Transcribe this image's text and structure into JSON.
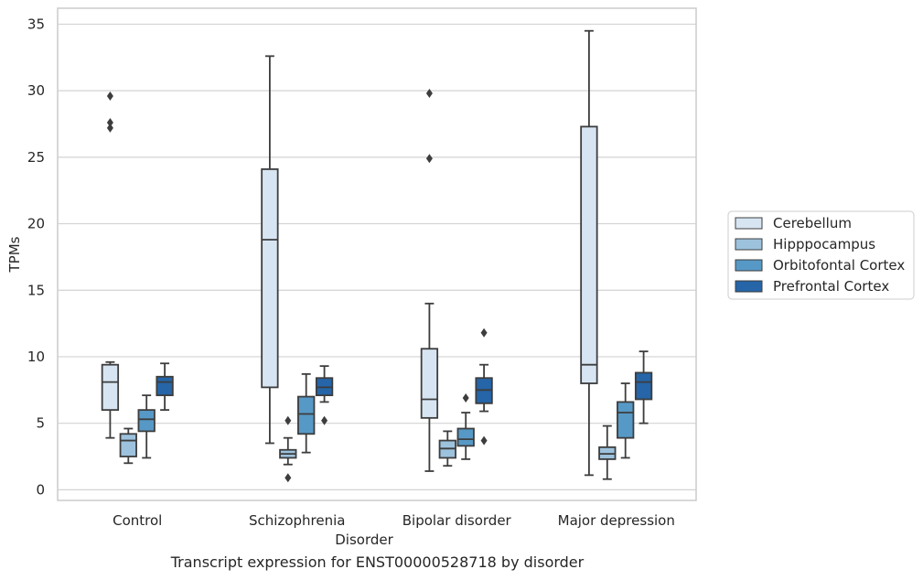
{
  "caption": "Transcript expression for ENST00000528718 by disorder",
  "chart_data": {
    "type": "boxplot",
    "xlabel": "Disorder",
    "ylabel": "TPMs",
    "ylim": [
      -0.8,
      36.2
    ],
    "yticks": [
      0,
      5,
      10,
      15,
      20,
      25,
      30,
      35
    ],
    "grid": true,
    "legend_position": "right",
    "categories": [
      "Control",
      "Schizophrenia",
      "Bipolar disorder",
      "Major depression"
    ],
    "series": [
      {
        "name": "Cerebellum",
        "color": "#d7e5f3",
        "boxes": [
          {
            "whisker_low": 3.9,
            "q1": 6.0,
            "median": 8.1,
            "q3": 9.4,
            "whisker_high": 9.6,
            "outliers": [
              27.2,
              27.6,
              29.6
            ]
          },
          {
            "whisker_low": 3.5,
            "q1": 7.7,
            "median": 18.8,
            "q3": 24.1,
            "whisker_high": 32.6,
            "outliers": []
          },
          {
            "whisker_low": 1.4,
            "q1": 5.4,
            "median": 6.8,
            "q3": 10.6,
            "whisker_high": 14.0,
            "outliers": [
              24.9,
              29.8
            ]
          },
          {
            "whisker_low": 1.1,
            "q1": 8.0,
            "median": 9.4,
            "q3": 27.3,
            "whisker_high": 34.5,
            "outliers": []
          }
        ]
      },
      {
        "name": "Hipppocampus",
        "color": "#9dc2dd",
        "boxes": [
          {
            "whisker_low": 2.0,
            "q1": 2.5,
            "median": 3.7,
            "q3": 4.2,
            "whisker_high": 4.6,
            "outliers": []
          },
          {
            "whisker_low": 1.9,
            "q1": 2.4,
            "median": 2.7,
            "q3": 3.0,
            "whisker_high": 3.9,
            "outliers": [
              0.9,
              5.2
            ]
          },
          {
            "whisker_low": 1.8,
            "q1": 2.4,
            "median": 3.1,
            "q3": 3.7,
            "whisker_high": 4.4,
            "outliers": []
          },
          {
            "whisker_low": 0.8,
            "q1": 2.3,
            "median": 2.7,
            "q3": 3.2,
            "whisker_high": 4.8,
            "outliers": []
          }
        ]
      },
      {
        "name": "Orbitofontal Cortex",
        "color": "#5799c6",
        "boxes": [
          {
            "whisker_low": 2.4,
            "q1": 4.4,
            "median": 5.3,
            "q3": 6.0,
            "whisker_high": 7.1,
            "outliers": []
          },
          {
            "whisker_low": 2.8,
            "q1": 4.2,
            "median": 5.7,
            "q3": 7.0,
            "whisker_high": 8.7,
            "outliers": []
          },
          {
            "whisker_low": 2.3,
            "q1": 3.3,
            "median": 3.8,
            "q3": 4.6,
            "whisker_high": 5.8,
            "outliers": [
              6.9
            ]
          },
          {
            "whisker_low": 2.4,
            "q1": 3.9,
            "median": 5.8,
            "q3": 6.6,
            "whisker_high": 8.0,
            "outliers": []
          }
        ]
      },
      {
        "name": "Prefrontal Cortex",
        "color": "#2565a8",
        "boxes": [
          {
            "whisker_low": 6.0,
            "q1": 7.1,
            "median": 8.1,
            "q3": 8.5,
            "whisker_high": 9.5,
            "outliers": []
          },
          {
            "whisker_low": 6.6,
            "q1": 7.1,
            "median": 7.7,
            "q3": 8.4,
            "whisker_high": 9.3,
            "outliers": [
              5.2
            ]
          },
          {
            "whisker_low": 5.9,
            "q1": 6.5,
            "median": 7.5,
            "q3": 8.4,
            "whisker_high": 9.4,
            "outliers": [
              3.7,
              11.8
            ]
          },
          {
            "whisker_low": 5.0,
            "q1": 6.8,
            "median": 8.1,
            "q3": 8.8,
            "whisker_high": 10.4,
            "outliers": []
          }
        ]
      }
    ]
  }
}
